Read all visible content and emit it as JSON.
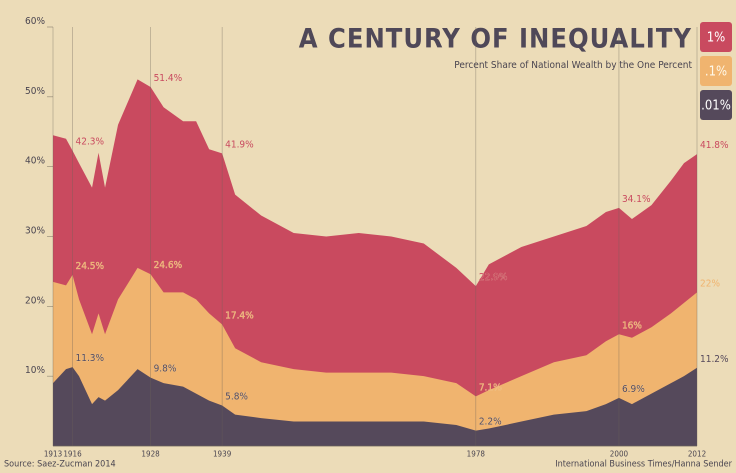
{
  "chart_data": {
    "type": "area",
    "title": "A CENTURY OF INEQUALITY",
    "subtitle": "Percent Share of National Wealth by the One Percent",
    "source": "Source: Saez-Zucman 2014",
    "credit": "International Business Times/Hanna Sender",
    "x": [
      1913,
      1915,
      1916,
      1917,
      1919,
      1920,
      1921,
      1923,
      1926,
      1928,
      1930,
      1933,
      1935,
      1937,
      1939,
      1941,
      1945,
      1950,
      1955,
      1960,
      1965,
      1970,
      1975,
      1978,
      1980,
      1985,
      1990,
      1995,
      1998,
      2000,
      2002,
      2005,
      2008,
      2010,
      2012
    ],
    "xlim": [
      1913,
      2012
    ],
    "xticks": [
      1913,
      1916,
      1928,
      1939,
      1978,
      2000,
      2012
    ],
    "ylim": [
      0,
      60
    ],
    "yticks": [
      {
        "value": 10,
        "label": "10%"
      },
      {
        "value": 20,
        "label": "20%"
      },
      {
        "value": 30,
        "label": "30%"
      },
      {
        "value": 40,
        "label": "40%"
      },
      {
        "value": 50,
        "label": "50%"
      },
      {
        "value": 60,
        "label": "60%"
      }
    ],
    "series": [
      {
        "name": "1%",
        "color": "#c94a5f",
        "values": [
          44.5,
          44,
          42.3,
          40.5,
          37,
          42,
          37,
          46,
          52.5,
          51.4,
          48.5,
          46.5,
          46.5,
          42.5,
          41.9,
          36,
          33,
          30.5,
          30,
          30.5,
          30,
          29,
          25.5,
          22.9,
          26,
          28.5,
          30,
          31.5,
          33.5,
          34.1,
          32.5,
          34.5,
          38,
          40.5,
          41.8
        ],
        "value_labels": [
          null,
          null,
          "42.3%",
          null,
          null,
          null,
          null,
          null,
          null,
          "51.4%",
          null,
          null,
          null,
          null,
          "41.9%",
          null,
          null,
          null,
          null,
          null,
          null,
          null,
          null,
          "22.9%",
          null,
          null,
          null,
          null,
          null,
          "34.1%",
          null,
          null,
          null,
          null,
          "41.8%"
        ]
      },
      {
        "name": ".1%",
        "color": "#f0b46f",
        "values": [
          23.5,
          23,
          24.5,
          21,
          16,
          19,
          16,
          21,
          25.5,
          24.6,
          22,
          22,
          21,
          19,
          17.4,
          14,
          12,
          11,
          10.5,
          10.5,
          10.5,
          10,
          9,
          7.1,
          8,
          10,
          12,
          13,
          15,
          16,
          15.5,
          17,
          19,
          20.5,
          22
        ],
        "value_labels": [
          null,
          null,
          "24.5%",
          null,
          null,
          null,
          null,
          null,
          null,
          "24.6%",
          null,
          null,
          null,
          null,
          "17.4%",
          null,
          null,
          null,
          null,
          null,
          null,
          null,
          null,
          "7.1%",
          null,
          null,
          null,
          null,
          null,
          "16%",
          null,
          null,
          null,
          null,
          "22%"
        ]
      },
      {
        "name": ".01%",
        "color": "#55495b",
        "values": [
          9,
          11,
          11.3,
          10,
          6,
          7,
          6.5,
          8,
          11,
          9.8,
          9,
          8.5,
          7.5,
          6.5,
          5.8,
          4.5,
          4,
          3.5,
          3.5,
          3.5,
          3.5,
          3.5,
          3,
          2.2,
          2.5,
          3.5,
          4.5,
          5,
          6,
          6.9,
          6,
          7.5,
          9,
          10,
          11.2
        ],
        "value_labels": [
          null,
          null,
          "11.3%",
          null,
          null,
          null,
          null,
          null,
          null,
          "9.8%",
          null,
          null,
          null,
          null,
          "5.8%",
          null,
          null,
          null,
          null,
          null,
          null,
          null,
          null,
          "2.2%",
          null,
          null,
          null,
          null,
          null,
          "6.9%",
          null,
          null,
          null,
          null,
          "11.2%"
        ]
      }
    ]
  }
}
